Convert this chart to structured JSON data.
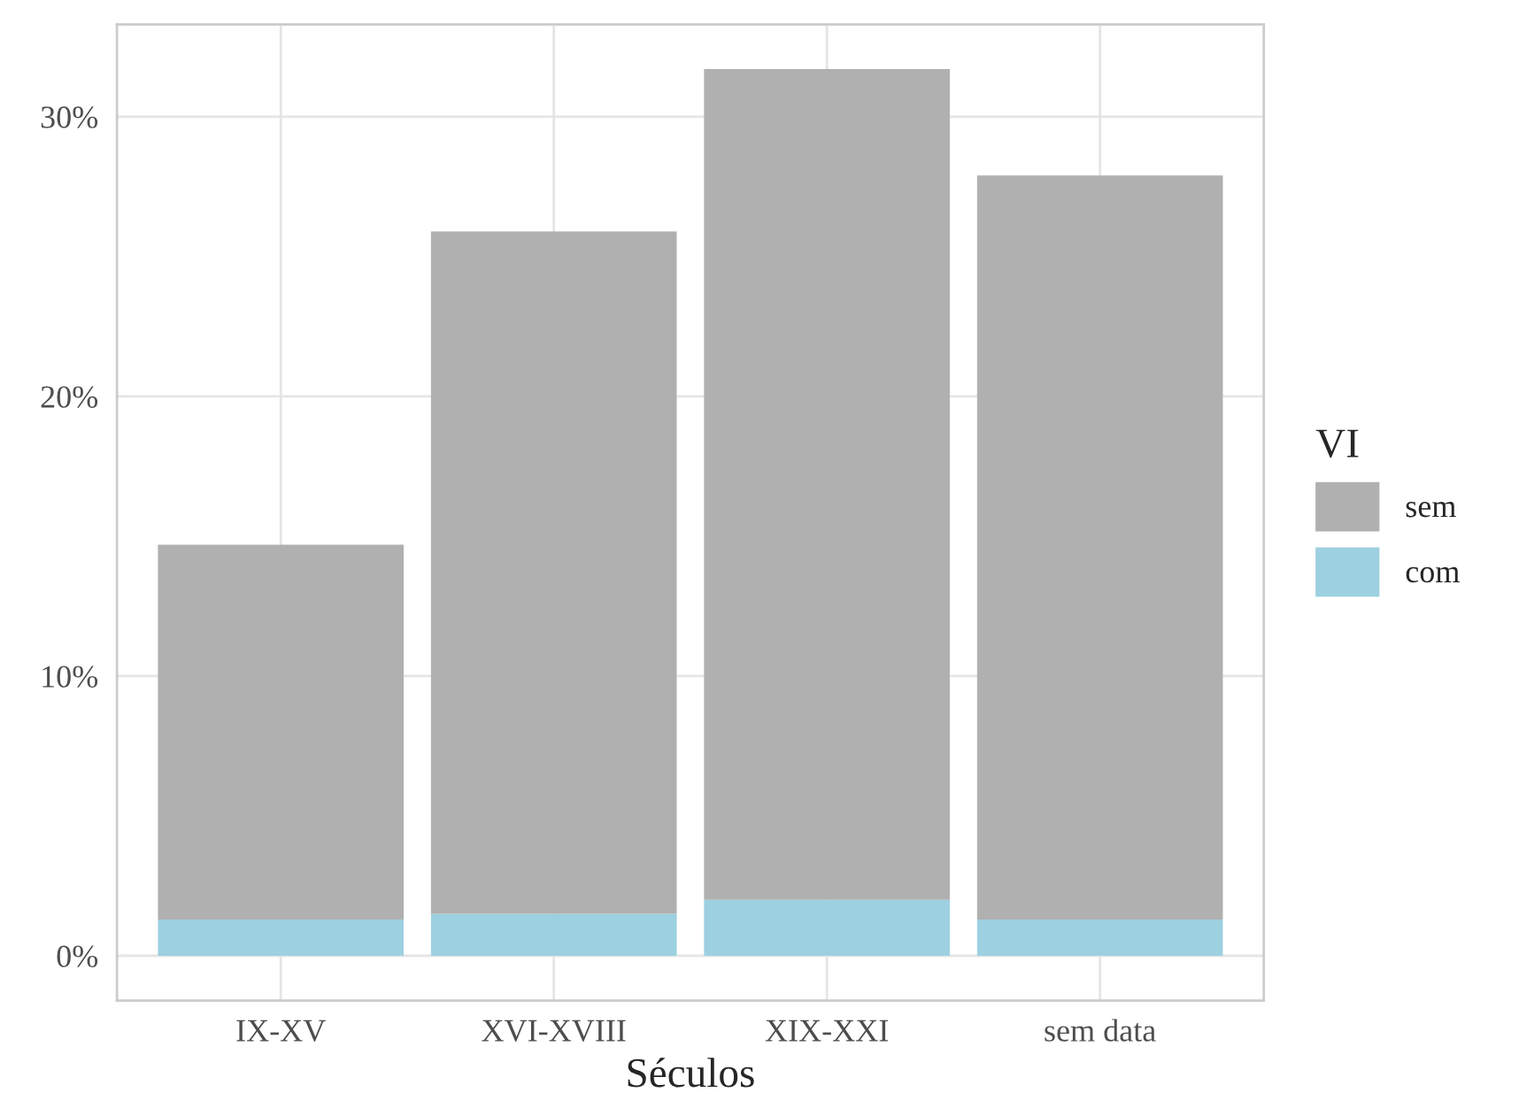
{
  "chart_data": {
    "type": "bar",
    "xlabel": "Séculos",
    "legend_title": "VI",
    "categories": [
      "IX-XV",
      "XVI-XVIII",
      "XIX-XXI",
      "sem data"
    ],
    "stacked": true,
    "series": [
      {
        "name": "com",
        "color": "#9dd0e0",
        "values": [
          1.3,
          1.5,
          2.0,
          1.3
        ]
      },
      {
        "name": "sem",
        "color": "#b0b0b0",
        "values": [
          13.4,
          24.4,
          29.7,
          26.6
        ]
      }
    ],
    "ylim": [
      -1.6,
      33.3
    ],
    "yticks": [
      {
        "value": 0,
        "label": "0%"
      },
      {
        "value": 10,
        "label": "10%"
      },
      {
        "value": 20,
        "label": "20%"
      },
      {
        "value": 30,
        "label": "30%"
      }
    ],
    "grid": true,
    "legend": "right"
  }
}
